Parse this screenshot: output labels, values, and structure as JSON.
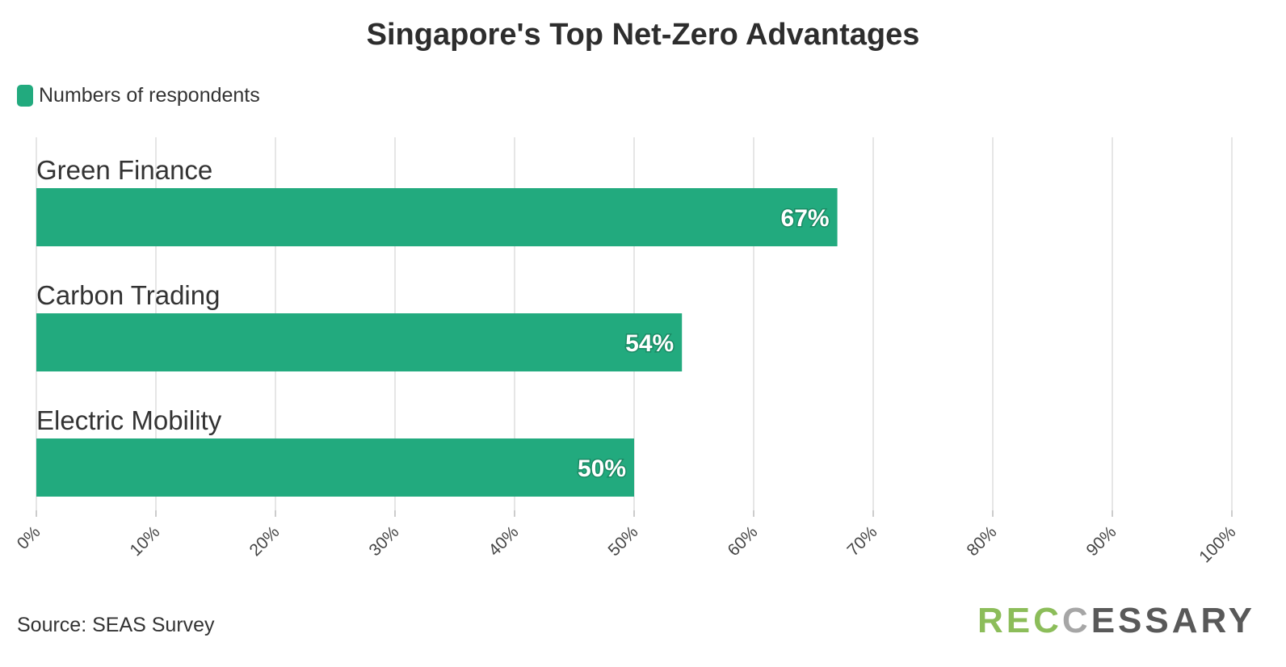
{
  "colors": {
    "bar": "#22aa7e",
    "grid": "#e6e6e6",
    "axis": "#cccccc",
    "text": "#333333"
  },
  "legend": {
    "label": "Numbers of respondents"
  },
  "footer": {
    "source": "Source: SEAS Survey"
  },
  "logo": {
    "part1": "REC",
    "part2": "C",
    "part3": "ESSARY"
  },
  "chart_data": {
    "type": "bar",
    "orientation": "horizontal",
    "title": "Singapore's Top Net-Zero Advantages",
    "categories": [
      "Green Finance",
      "Carbon Trading",
      "Electric Mobility"
    ],
    "series": [
      {
        "name": "Numbers of respondents",
        "values": [
          67,
          54,
          50
        ]
      }
    ],
    "data_labels": [
      "67%",
      "54%",
      "50%"
    ],
    "xlim": [
      0,
      100
    ],
    "x_ticks": [
      "0%",
      "10%",
      "20%",
      "30%",
      "40%",
      "50%",
      "60%",
      "70%",
      "80%",
      "90%",
      "100%"
    ],
    "grid": true,
    "legend_position": "top-left"
  }
}
